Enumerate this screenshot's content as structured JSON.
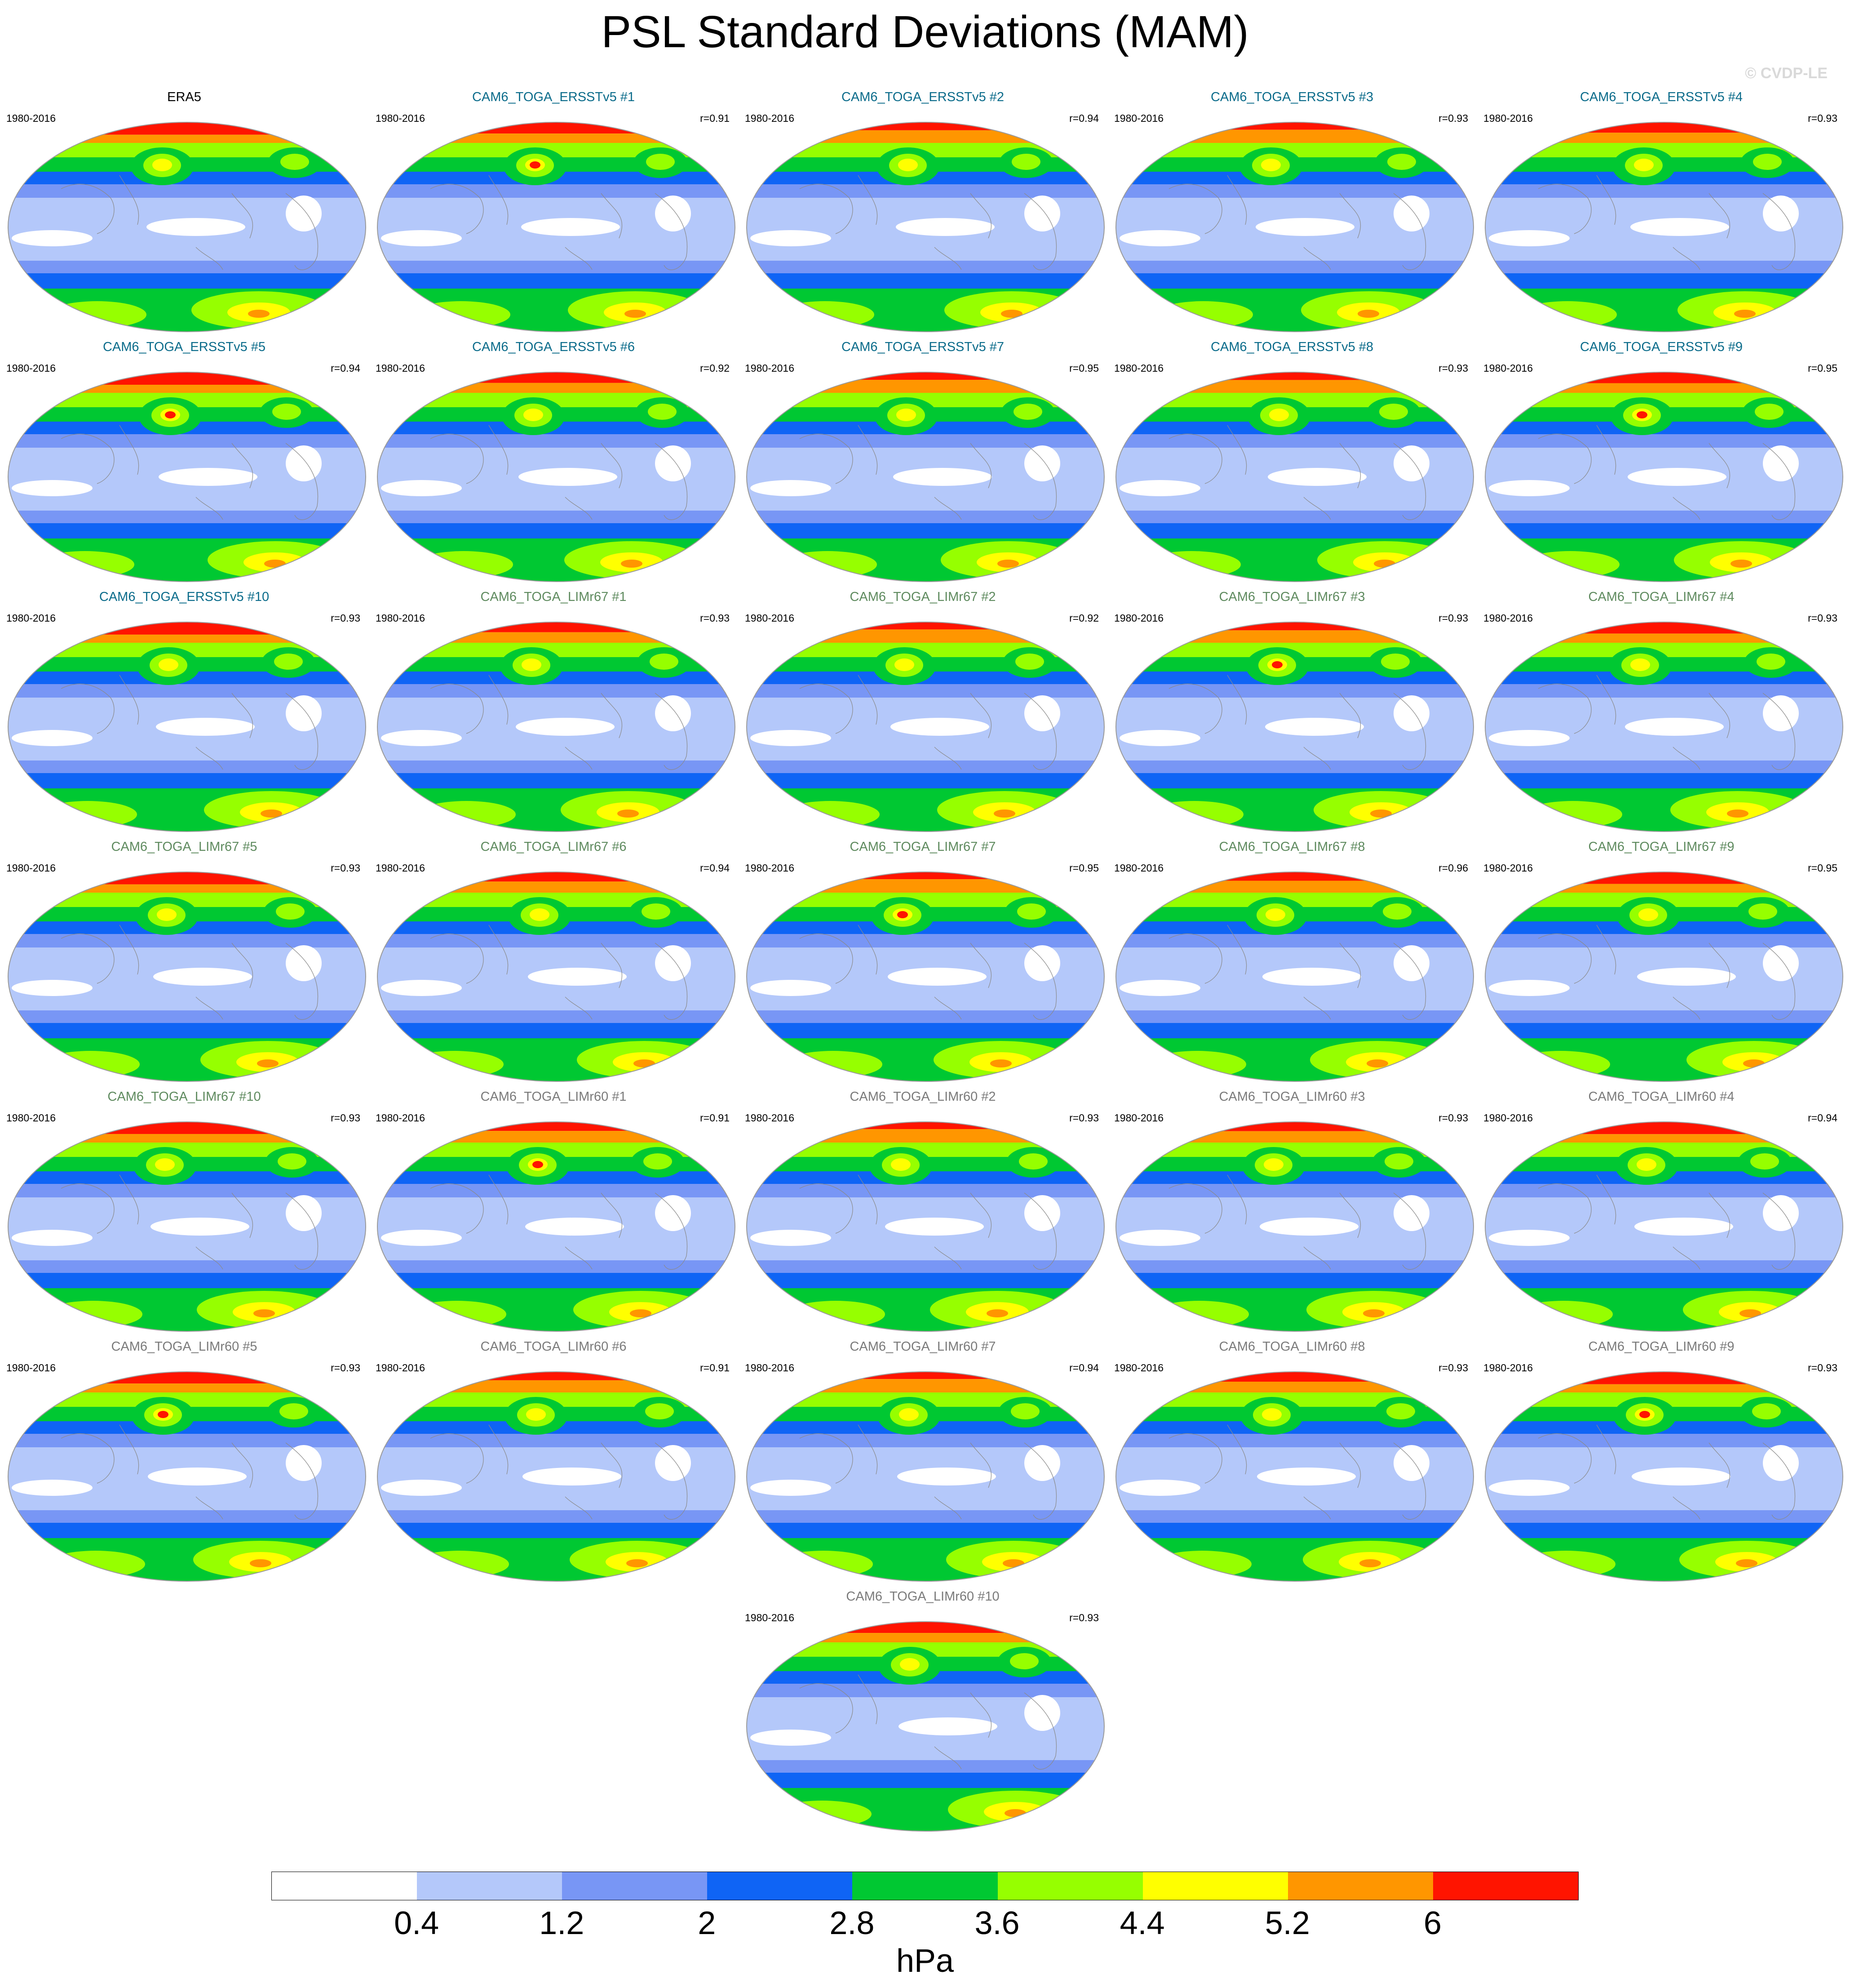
{
  "title": "PSL Standard Deviations (MAM)",
  "watermark": "© CVDP-LE",
  "units": "hPa",
  "panels": [
    {
      "name": "ERA5",
      "period": "1980-2016",
      "r": "",
      "group": "obs"
    },
    {
      "name": "CAM6_TOGA_ERSSTv5 #1",
      "period": "1980-2016",
      "r": "r=0.91",
      "group": "ersst"
    },
    {
      "name": "CAM6_TOGA_ERSSTv5 #2",
      "period": "1980-2016",
      "r": "r=0.94",
      "group": "ersst"
    },
    {
      "name": "CAM6_TOGA_ERSSTv5 #3",
      "period": "1980-2016",
      "r": "r=0.93",
      "group": "ersst"
    },
    {
      "name": "CAM6_TOGA_ERSSTv5 #4",
      "period": "1980-2016",
      "r": "r=0.93",
      "group": "ersst"
    },
    {
      "name": "CAM6_TOGA_ERSSTv5 #5",
      "period": "1980-2016",
      "r": "r=0.94",
      "group": "ersst"
    },
    {
      "name": "CAM6_TOGA_ERSSTv5 #6",
      "period": "1980-2016",
      "r": "r=0.92",
      "group": "ersst"
    },
    {
      "name": "CAM6_TOGA_ERSSTv5 #7",
      "period": "1980-2016",
      "r": "r=0.95",
      "group": "ersst"
    },
    {
      "name": "CAM6_TOGA_ERSSTv5 #8",
      "period": "1980-2016",
      "r": "r=0.93",
      "group": "ersst"
    },
    {
      "name": "CAM6_TOGA_ERSSTv5 #9",
      "period": "1980-2016",
      "r": "r=0.95",
      "group": "ersst"
    },
    {
      "name": "CAM6_TOGA_ERSSTv5 #10",
      "period": "1980-2016",
      "r": "r=0.93",
      "group": "ersst"
    },
    {
      "name": "CAM6_TOGA_LIMr67 #1",
      "period": "1980-2016",
      "r": "r=0.93",
      "group": "r67"
    },
    {
      "name": "CAM6_TOGA_LIMr67 #2",
      "period": "1980-2016",
      "r": "r=0.92",
      "group": "r67"
    },
    {
      "name": "CAM6_TOGA_LIMr67 #3",
      "period": "1980-2016",
      "r": "r=0.93",
      "group": "r67"
    },
    {
      "name": "CAM6_TOGA_LIMr67 #4",
      "period": "1980-2016",
      "r": "r=0.93",
      "group": "r67"
    },
    {
      "name": "CAM6_TOGA_LIMr67 #5",
      "period": "1980-2016",
      "r": "r=0.93",
      "group": "r67"
    },
    {
      "name": "CAM6_TOGA_LIMr67 #6",
      "period": "1980-2016",
      "r": "r=0.94",
      "group": "r67"
    },
    {
      "name": "CAM6_TOGA_LIMr67 #7",
      "period": "1980-2016",
      "r": "r=0.95",
      "group": "r67"
    },
    {
      "name": "CAM6_TOGA_LIMr67 #8",
      "period": "1980-2016",
      "r": "r=0.96",
      "group": "r67"
    },
    {
      "name": "CAM6_TOGA_LIMr67 #9",
      "period": "1980-2016",
      "r": "r=0.95",
      "group": "r67"
    },
    {
      "name": "CAM6_TOGA_LIMr67 #10",
      "period": "1980-2016",
      "r": "r=0.93",
      "group": "r67"
    },
    {
      "name": "CAM6_TOGA_LIMr60 #1",
      "period": "1980-2016",
      "r": "r=0.91",
      "group": "r60"
    },
    {
      "name": "CAM6_TOGA_LIMr60 #2",
      "period": "1980-2016",
      "r": "r=0.93",
      "group": "r60"
    },
    {
      "name": "CAM6_TOGA_LIMr60 #3",
      "period": "1980-2016",
      "r": "r=0.93",
      "group": "r60"
    },
    {
      "name": "CAM6_TOGA_LIMr60 #4",
      "period": "1980-2016",
      "r": "r=0.94",
      "group": "r60"
    },
    {
      "name": "CAM6_TOGA_LIMr60 #5",
      "period": "1980-2016",
      "r": "r=0.93",
      "group": "r60"
    },
    {
      "name": "CAM6_TOGA_LIMr60 #6",
      "period": "1980-2016",
      "r": "r=0.91",
      "group": "r60"
    },
    {
      "name": "CAM6_TOGA_LIMr60 #7",
      "period": "1980-2016",
      "r": "r=0.94",
      "group": "r60"
    },
    {
      "name": "CAM6_TOGA_LIMr60 #8",
      "period": "1980-2016",
      "r": "r=0.93",
      "group": "r60"
    },
    {
      "name": "CAM6_TOGA_LIMr60 #9",
      "period": "1980-2016",
      "r": "r=0.93",
      "group": "r60"
    },
    {
      "name": "CAM6_TOGA_LIMr60 #10",
      "period": "1980-2016",
      "r": "r=0.93",
      "group": "r60"
    }
  ],
  "group_colors": {
    "obs": "#000000",
    "ersst": "#0a6b8a",
    "r67": "#5e8a5e",
    "r60": "#7a7a7a"
  },
  "colorbar": {
    "colors": [
      "#ffffff",
      "#b4c8fa",
      "#7896f5",
      "#0f64f5",
      "#00c832",
      "#96ff00",
      "#ffff00",
      "#ff9600",
      "#ff1400"
    ],
    "labels": [
      "0.4",
      "1.2",
      "2",
      "2.8",
      "3.6",
      "4.4",
      "5.2",
      "6"
    ]
  }
}
